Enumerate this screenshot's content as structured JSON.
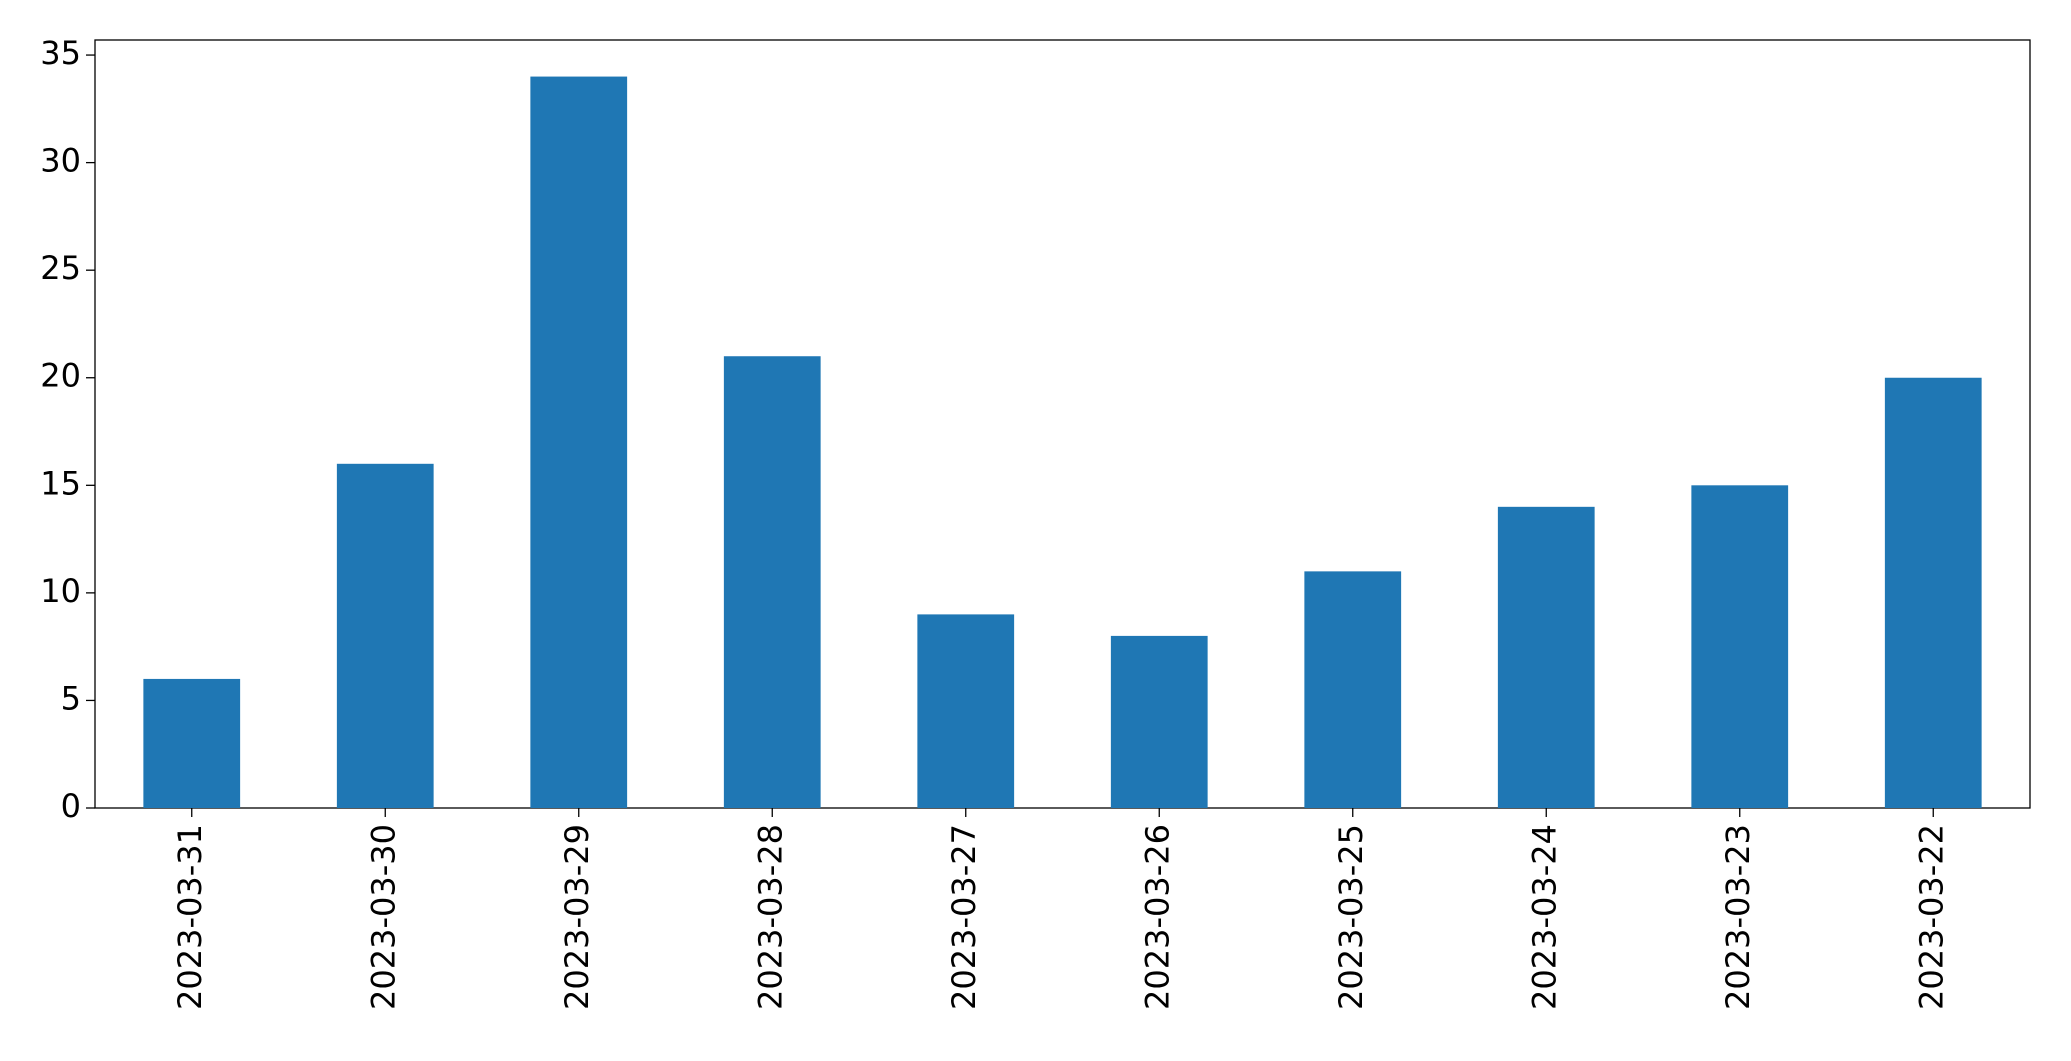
{
  "chart_data": {
    "type": "bar",
    "categories": [
      "2023-03-31",
      "2023-03-30",
      "2023-03-29",
      "2023-03-28",
      "2023-03-27",
      "2023-03-26",
      "2023-03-25",
      "2023-03-24",
      "2023-03-23",
      "2023-03-22"
    ],
    "values": [
      6,
      16,
      34,
      21,
      9,
      8,
      11,
      14,
      15,
      20
    ],
    "color": "#1f77b4",
    "ylim": [
      0,
      35.7
    ],
    "yticks": [
      0,
      5,
      10,
      15,
      20,
      25,
      30,
      35
    ],
    "grid": false
  }
}
